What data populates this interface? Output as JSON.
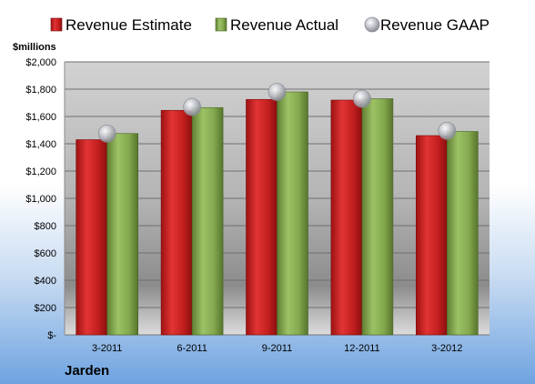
{
  "chart_data": {
    "type": "bar",
    "company": "Jarden",
    "ylabel": "$millions",
    "categories": [
      "3-2011",
      "6-2011",
      "9-2011",
      "12-2011",
      "3-2012"
    ],
    "series": [
      {
        "name": "Revenue Estimate",
        "kind": "bar",
        "color": "#d42a2a",
        "values": [
          1430,
          1645,
          1725,
          1720,
          1460
        ]
      },
      {
        "name": "Revenue Actual",
        "kind": "bar",
        "color": "#8aaf55",
        "values": [
          1475,
          1665,
          1780,
          1730,
          1490
        ]
      },
      {
        "name": "Revenue GAAP",
        "kind": "marker",
        "color": "#b9bcc4",
        "values": [
          1475,
          1670,
          1780,
          1730,
          1495
        ]
      }
    ],
    "ylim": [
      0,
      2000
    ],
    "yticks": [
      0,
      200,
      400,
      600,
      800,
      1000,
      1200,
      1400,
      1600,
      1800,
      2000
    ],
    "ytick_labels": [
      "$-",
      "$200",
      "$400",
      "$600",
      "$800",
      "$1,000",
      "$1,200",
      "$1,400",
      "$1,600",
      "$1,800",
      "$2,000"
    ],
    "grid": true,
    "legend_position": "top"
  }
}
